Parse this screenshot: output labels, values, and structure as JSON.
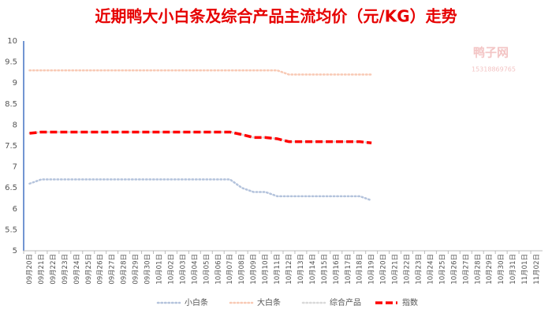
{
  "chart_data": {
    "type": "line",
    "title": "近期鸭大小白条及综合产品主流均价（元/KG）走势",
    "watermark": {
      "name": "鸭子网",
      "phone": "15318869765"
    },
    "categories": [
      "09月20日",
      "09月21日",
      "09月22日",
      "09月23日",
      "09月24日",
      "09月25日",
      "09月26日",
      "09月27日",
      "09月28日",
      "09月29日",
      "09月30日",
      "10月01日",
      "10月02日",
      "10月03日",
      "10月04日",
      "10月05日",
      "10月06日",
      "10月07日",
      "10月08日",
      "10月09日",
      "10月10日",
      "10月11日",
      "10月12日",
      "10月13日",
      "10月14日",
      "10月15日",
      "10月16日",
      "10月17日",
      "10月18日",
      "10月19日",
      "10月20日",
      "10月21日",
      "10月22日",
      "10月23日",
      "10月24日",
      "10月25日",
      "10月26日",
      "10月27日",
      "10月28日",
      "10月29日",
      "10月30日",
      "10月31日",
      "11月01日",
      "11月02日"
    ],
    "series": [
      {
        "name": "小白条",
        "color": "#b4c3dc",
        "dash": "dot",
        "values": [
          6.6,
          6.7,
          6.7,
          6.7,
          6.7,
          6.7,
          6.7,
          6.7,
          6.7,
          6.7,
          6.7,
          6.7,
          6.7,
          6.7,
          6.7,
          6.7,
          6.7,
          6.7,
          6.5,
          6.4,
          6.4,
          6.3,
          6.3,
          6.3,
          6.3,
          6.3,
          6.3,
          6.3,
          6.3,
          6.2,
          null,
          null,
          null,
          null,
          null,
          null,
          null,
          null,
          null,
          null,
          null,
          null,
          null,
          null
        ]
      },
      {
        "name": "大白条",
        "color": "#f8c9b4",
        "dash": "dot",
        "values": [
          9.3,
          9.3,
          9.3,
          9.3,
          9.3,
          9.3,
          9.3,
          9.3,
          9.3,
          9.3,
          9.3,
          9.3,
          9.3,
          9.3,
          9.3,
          9.3,
          9.3,
          9.3,
          9.3,
          9.3,
          9.3,
          9.3,
          9.2,
          9.2,
          9.2,
          9.2,
          9.2,
          9.2,
          9.2,
          9.2,
          null,
          null,
          null,
          null,
          null,
          null,
          null,
          null,
          null,
          null,
          null,
          null,
          null,
          null
        ]
      },
      {
        "name": "综合产品",
        "color": "#d9d9d9",
        "dash": "dot",
        "values": [
          7.8,
          7.83,
          7.83,
          7.83,
          7.83,
          7.83,
          7.83,
          7.83,
          7.83,
          7.83,
          7.83,
          7.83,
          7.83,
          7.83,
          7.83,
          7.83,
          7.83,
          7.83,
          7.77,
          7.7,
          7.7,
          7.67,
          7.6,
          7.6,
          7.6,
          7.6,
          7.6,
          7.6,
          7.6,
          7.57,
          null,
          null,
          null,
          null,
          null,
          null,
          null,
          null,
          null,
          null,
          null,
          null,
          null,
          null
        ]
      },
      {
        "name": "指数",
        "color": "#ff0000",
        "dash": "dash",
        "values": [
          7.8,
          7.83,
          7.83,
          7.83,
          7.83,
          7.83,
          7.83,
          7.83,
          7.83,
          7.83,
          7.83,
          7.83,
          7.83,
          7.83,
          7.83,
          7.83,
          7.83,
          7.83,
          7.77,
          7.7,
          7.7,
          7.67,
          7.6,
          7.6,
          7.6,
          7.6,
          7.6,
          7.6,
          7.6,
          7.57,
          null,
          null,
          null,
          null,
          null,
          null,
          null,
          null,
          null,
          null,
          null,
          null,
          null,
          null
        ]
      }
    ],
    "ylim": [
      5,
      10
    ],
    "yticks": [
      5,
      5.5,
      6,
      6.5,
      7,
      7.5,
      8,
      8.5,
      9,
      9.5,
      10
    ],
    "grid": false,
    "legend": "bottom"
  }
}
